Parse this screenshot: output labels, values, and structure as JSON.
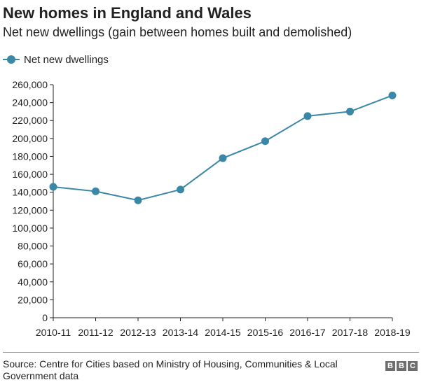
{
  "header": {
    "title": "New homes in England and Wales",
    "subtitle": "Net new dwellings (gain between homes built and demolished)"
  },
  "legend": {
    "label": "Net new dwellings",
    "placement": "top-left"
  },
  "footer": {
    "source": "Source: Centre for Cities based on Ministry of Housing, Communities & Local Government data",
    "logo_letters": [
      "B",
      "B",
      "C"
    ]
  },
  "colors": {
    "series": "#3a87a6",
    "axis": "#222222",
    "text": "#222222"
  },
  "chart_data": {
    "type": "line",
    "title": "New homes in England and Wales",
    "subtitle": "Net new dwellings (gain between homes built and demolished)",
    "categories": [
      "2010-11",
      "2011-12",
      "2012-13",
      "2013-14",
      "2014-15",
      "2015-16",
      "2016-17",
      "2017-18",
      "2018-19"
    ],
    "series": [
      {
        "name": "Net new dwellings",
        "values": [
          146000,
          141000,
          131000,
          143000,
          178000,
          197000,
          225000,
          230000,
          248000
        ]
      }
    ],
    "ylim": [
      0,
      260000
    ],
    "yticks": [
      "0",
      "20,000",
      "40,000",
      "60,000",
      "80,000",
      "100,000",
      "120,000",
      "140,000",
      "160,000",
      "180,000",
      "200,000",
      "220,000",
      "240,000",
      "260,000"
    ],
    "xlabel": "",
    "ylabel": "",
    "grid": false,
    "legend_position": "top-left"
  }
}
